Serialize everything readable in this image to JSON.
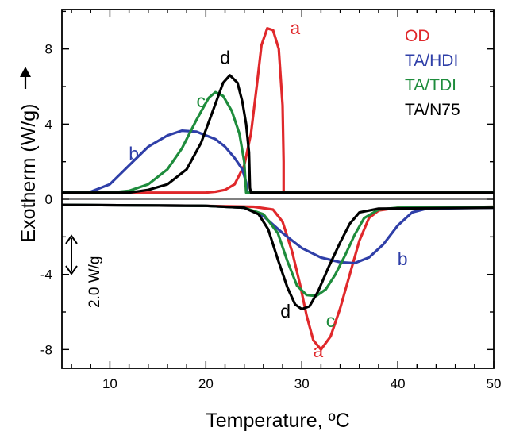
{
  "chart_data": {
    "type": "line",
    "xlabel": "Temperature, ºC",
    "ylabel": "Exotherm (W/g)",
    "xlim": [
      5,
      50
    ],
    "ylim": [
      -9.0,
      10.1
    ],
    "xticks": [
      10,
      20,
      30,
      40,
      50
    ],
    "yticks": [
      8,
      4,
      0,
      -4,
      -8
    ],
    "grid": false,
    "legend_position": "top-right",
    "scale_bar_label": "2.0 W/g",
    "series": [
      {
        "name": "OD",
        "label": "a",
        "color": "#e0282b",
        "heating": [
          [
            5,
            0.35
          ],
          [
            20,
            0.35
          ],
          [
            21,
            0.4
          ],
          [
            22,
            0.5
          ],
          [
            23,
            0.8
          ],
          [
            24,
            1.8
          ],
          [
            24.7,
            3.5
          ],
          [
            25.3,
            6.0
          ],
          [
            25.8,
            8.2
          ],
          [
            26.4,
            9.1
          ],
          [
            27,
            9.0
          ],
          [
            27.6,
            8.0
          ],
          [
            28.0,
            5.0
          ],
          [
            28.1,
            2.0
          ],
          [
            28.1,
            0.35
          ],
          [
            50,
            0.35
          ]
        ],
        "cooling": [
          [
            5,
            -0.3
          ],
          [
            20,
            -0.35
          ],
          [
            25,
            -0.4
          ],
          [
            27,
            -0.55
          ],
          [
            28,
            -1.2
          ],
          [
            29,
            -2.8
          ],
          [
            29.8,
            -4.5
          ],
          [
            30.5,
            -6.2
          ],
          [
            31.2,
            -7.5
          ],
          [
            32,
            -8.0
          ],
          [
            33,
            -7.3
          ],
          [
            34,
            -5.8
          ],
          [
            35,
            -4.0
          ],
          [
            36,
            -2.2
          ],
          [
            37,
            -1.0
          ],
          [
            38,
            -0.6
          ],
          [
            40,
            -0.45
          ],
          [
            50,
            -0.4
          ]
        ]
      },
      {
        "name": "TA/HDI",
        "label": "b",
        "color": "#2f3fa8",
        "heating": [
          [
            5,
            0.35
          ],
          [
            8,
            0.4
          ],
          [
            10,
            0.8
          ],
          [
            12,
            1.8
          ],
          [
            14,
            2.8
          ],
          [
            16,
            3.4
          ],
          [
            17.5,
            3.65
          ],
          [
            19,
            3.6
          ],
          [
            21,
            3.2
          ],
          [
            22,
            2.8
          ],
          [
            23,
            2.2
          ],
          [
            23.8,
            1.6
          ],
          [
            24.2,
            0.9
          ],
          [
            24.3,
            0.35
          ],
          [
            50,
            0.35
          ]
        ],
        "cooling": [
          [
            5,
            -0.3
          ],
          [
            20,
            -0.35
          ],
          [
            24,
            -0.45
          ],
          [
            26,
            -0.9
          ],
          [
            28,
            -1.8
          ],
          [
            30,
            -2.6
          ],
          [
            32,
            -3.1
          ],
          [
            34,
            -3.35
          ],
          [
            35.5,
            -3.4
          ],
          [
            37,
            -3.1
          ],
          [
            38.5,
            -2.4
          ],
          [
            40,
            -1.4
          ],
          [
            41.5,
            -0.7
          ],
          [
            43,
            -0.5
          ],
          [
            50,
            -0.45
          ]
        ]
      },
      {
        "name": "TA/TDI",
        "label": "c",
        "color": "#1e8c3c",
        "heating": [
          [
            5,
            0.35
          ],
          [
            10,
            0.35
          ],
          [
            12,
            0.45
          ],
          [
            14,
            0.8
          ],
          [
            16,
            1.6
          ],
          [
            17.5,
            2.7
          ],
          [
            19,
            4.2
          ],
          [
            20.3,
            5.4
          ],
          [
            21,
            5.7
          ],
          [
            21.8,
            5.5
          ],
          [
            22.7,
            4.7
          ],
          [
            23.5,
            3.5
          ],
          [
            24,
            2.0
          ],
          [
            24.2,
            0.35
          ],
          [
            50,
            0.35
          ]
        ],
        "cooling": [
          [
            5,
            -0.3
          ],
          [
            20,
            -0.35
          ],
          [
            24,
            -0.45
          ],
          [
            26,
            -0.8
          ],
          [
            27.5,
            -1.8
          ],
          [
            28.5,
            -3.3
          ],
          [
            29.5,
            -4.6
          ],
          [
            30.5,
            -5.1
          ],
          [
            31.5,
            -5.15
          ],
          [
            32.5,
            -4.8
          ],
          [
            33.5,
            -4.0
          ],
          [
            34.5,
            -3.0
          ],
          [
            35.5,
            -1.9
          ],
          [
            36.5,
            -1.0
          ],
          [
            38,
            -0.55
          ],
          [
            40,
            -0.45
          ],
          [
            50,
            -0.4
          ]
        ]
      },
      {
        "name": "TA/N75",
        "label": "d",
        "color": "#000000",
        "heating": [
          [
            5,
            0.35
          ],
          [
            12,
            0.35
          ],
          [
            14,
            0.5
          ],
          [
            16,
            0.8
          ],
          [
            18,
            1.6
          ],
          [
            19.5,
            3.0
          ],
          [
            20.8,
            4.8
          ],
          [
            21.8,
            6.2
          ],
          [
            22.5,
            6.6
          ],
          [
            23.3,
            6.2
          ],
          [
            23.8,
            5.2
          ],
          [
            24.2,
            4.0
          ],
          [
            24.5,
            2.5
          ],
          [
            24.6,
            0.6
          ],
          [
            24.7,
            0.35
          ],
          [
            50,
            0.35
          ]
        ],
        "cooling": [
          [
            5,
            -0.3
          ],
          [
            20,
            -0.35
          ],
          [
            24,
            -0.45
          ],
          [
            25.5,
            -0.8
          ],
          [
            26.5,
            -1.6
          ],
          [
            27.5,
            -3.2
          ],
          [
            28.5,
            -4.7
          ],
          [
            29.3,
            -5.6
          ],
          [
            30,
            -5.85
          ],
          [
            30.8,
            -5.7
          ],
          [
            31.7,
            -4.9
          ],
          [
            32.8,
            -3.6
          ],
          [
            34,
            -2.3
          ],
          [
            35,
            -1.3
          ],
          [
            36,
            -0.7
          ],
          [
            38,
            -0.5
          ],
          [
            50,
            -0.45
          ]
        ]
      }
    ]
  }
}
